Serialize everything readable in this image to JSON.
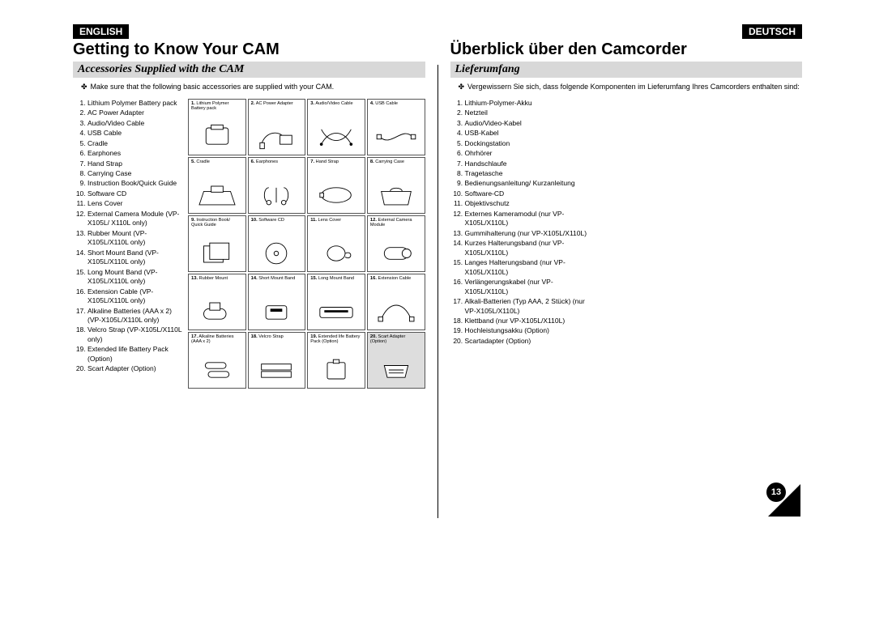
{
  "lang": {
    "en": "ENGLISH",
    "de": "DEUTSCH"
  },
  "heading": {
    "en": "Getting to Know Your CAM",
    "de": "Überblick über den Camcorder"
  },
  "subheading": {
    "en": "Accessories Supplied with the CAM",
    "de": "Lieferumfang"
  },
  "note": {
    "en": "Make sure that the following basic accessories are supplied with your CAM.",
    "de": "Vergewissern Sie sich, dass folgende Komponenten im Lieferumfang Ihres Camcorders enthalten sind:"
  },
  "list_en": [
    "Lithium Polymer Battery pack",
    "AC Power Adapter",
    "Audio/Video Cable",
    "USB Cable",
    "Cradle",
    "Earphones",
    "Hand Strap",
    "Carrying Case",
    "Instruction Book/Quick Guide",
    "Software CD",
    "Lens Cover",
    "External Camera Module (VP-X105L/ X110L only)",
    "Rubber Mount (VP-X105L/X110L only)",
    "Short Mount Band (VP-X105L/X110L only)",
    "Long Mount Band (VP-X105L/X110L only)",
    "Extension Cable (VP-X105L/X110L only)",
    "Alkaline Batteries (AAA x 2) (VP-X105L/X110L only)",
    "Velcro Strap (VP-X105L/X110L only)",
    "Extended life Battery Pack (Option)",
    "Scart Adapter (Option)"
  ],
  "list_de": [
    "Lithium-Polymer-Akku",
    "Netzteil",
    "Audio/Video-Kabel",
    "USB-Kabel",
    "Dockingstation",
    "Ohrhörer",
    "Handschlaufe",
    "Tragetasche",
    "Bedienungsanleitung/ Kurzanleitung",
    "Software-CD",
    "Objektivschutz",
    "Externes Kameramodul (nur VP-X105L/X110L)",
    "Gummihalterung (nur VP-X105L/X110L)",
    "Kurzes Halterungsband (nur VP-X105L/X110L)",
    "Langes Halterungsband (nur VP-X105L/X110L)",
    "Verlängerungskabel (nur VP-X105L/X110L)",
    "Alkali-Batterien (Typ AAA, 2 Stück) (nur VP-X105L/X110L)",
    "Klettband (nur VP-X105L/X110L)",
    "Hochleistungsakku (Option)",
    "Scartadapter (Option)"
  ],
  "cells": [
    {
      "n": "1.",
      "label": "Lithium Polymer Battery pack",
      "icon": "battery"
    },
    {
      "n": "2.",
      "label": "AC Power Adapter",
      "icon": "adapter"
    },
    {
      "n": "3.",
      "label": "Audio/Video Cable",
      "icon": "avcable"
    },
    {
      "n": "4.",
      "label": "USB Cable",
      "icon": "usb"
    },
    {
      "n": "5.",
      "label": "Cradle",
      "icon": "cradle"
    },
    {
      "n": "6.",
      "label": "Earphones",
      "icon": "earphones"
    },
    {
      "n": "7.",
      "label": "Hand Strap",
      "icon": "strap"
    },
    {
      "n": "8.",
      "label": "Carrying Case",
      "icon": "case"
    },
    {
      "n": "9.",
      "label": "Instruction Book/ Quick Guide",
      "icon": "book"
    },
    {
      "n": "10.",
      "label": "Software CD",
      "icon": "cd"
    },
    {
      "n": "11.",
      "label": "Lens Cover",
      "icon": "lenscover"
    },
    {
      "n": "12.",
      "label": "External Camera Module",
      "icon": "extcam"
    },
    {
      "n": "13.",
      "label": "Rubber Mount",
      "icon": "mount"
    },
    {
      "n": "14.",
      "label": "Short Mount Band",
      "icon": "shortband"
    },
    {
      "n": "15.",
      "label": "Long Mount Band",
      "icon": "longband"
    },
    {
      "n": "16.",
      "label": "Extension Cable",
      "icon": "extcable"
    },
    {
      "n": "17.",
      "label": "Alkaline Batteries (AAA x 2)",
      "icon": "aaa"
    },
    {
      "n": "18.",
      "label": "Velcro Strap",
      "icon": "velcro"
    },
    {
      "n": "19.",
      "label": "Extended life Battery Pack (Option)",
      "icon": "extbatt"
    },
    {
      "n": "20.",
      "label": "Scart Adapter (Option)",
      "icon": "scart",
      "shaded": true
    }
  ],
  "pagenum": "13"
}
